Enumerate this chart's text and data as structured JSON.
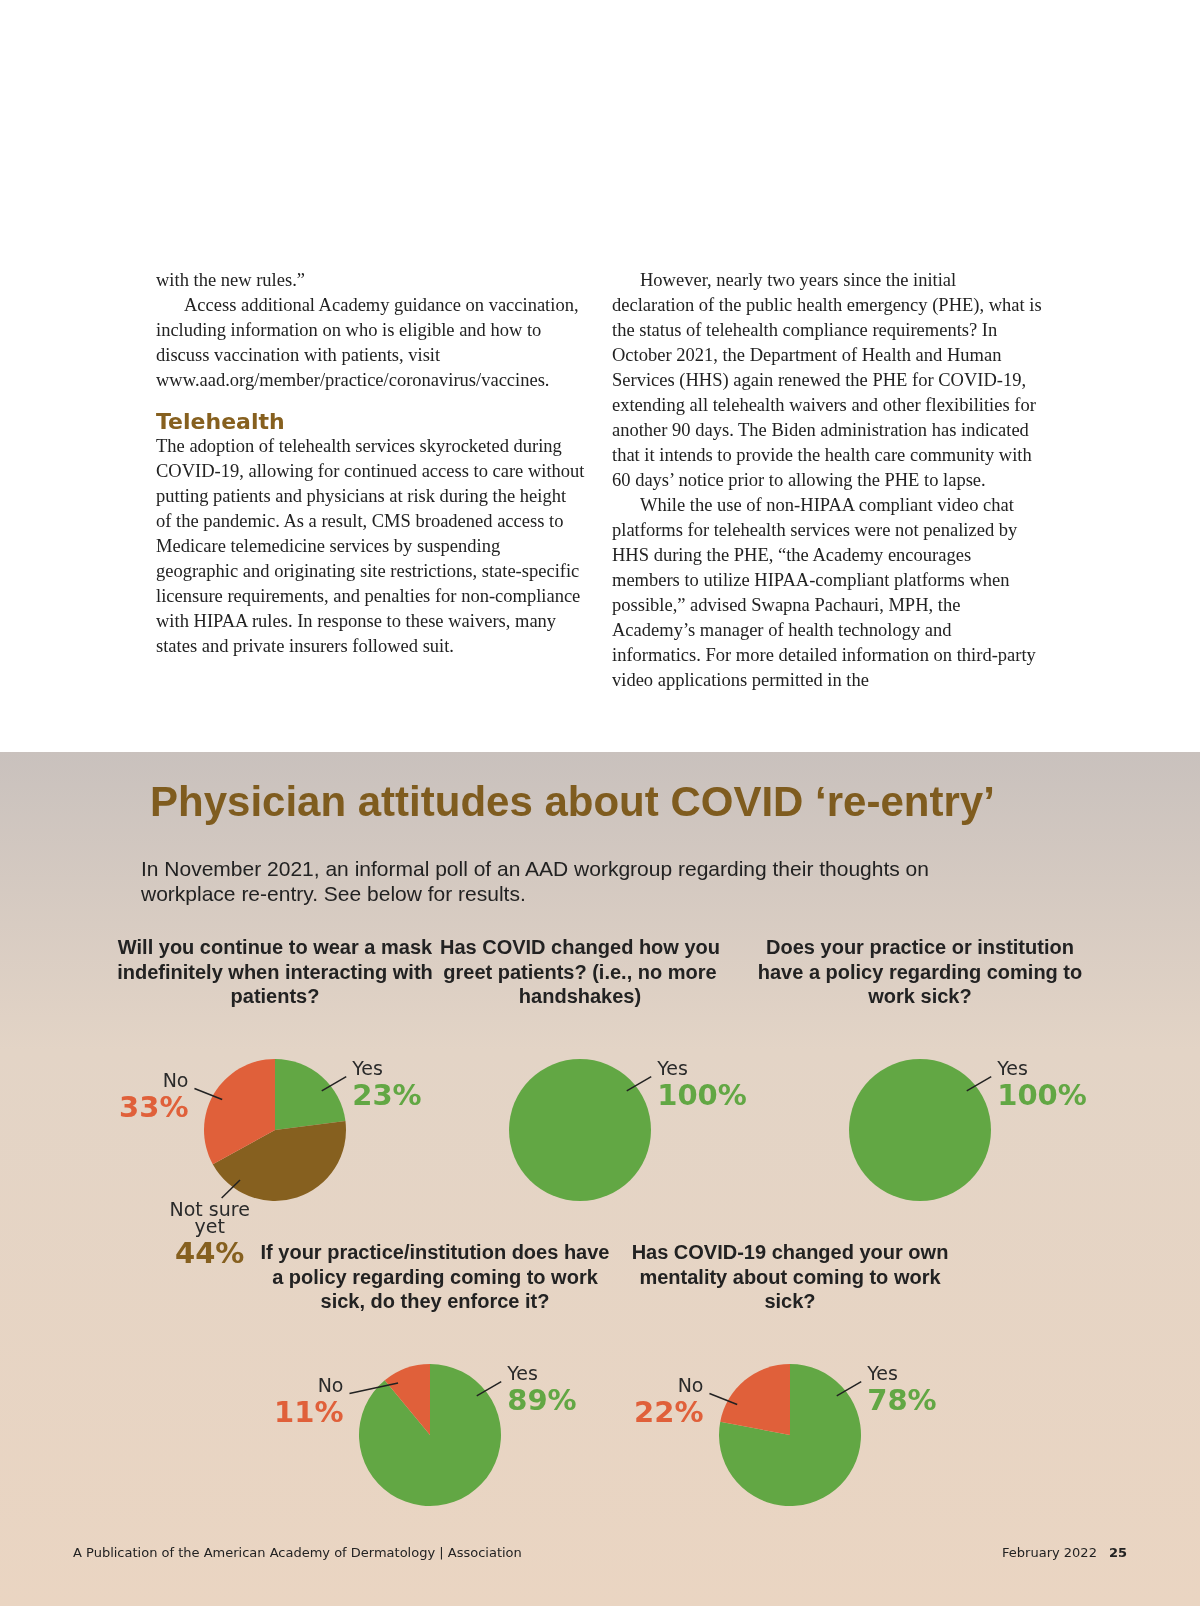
{
  "chart_data": [
    {
      "type": "other",
      "title": "Physician attitudes about COVID ‘re-entry’",
      "subtitle": "In November 2021, an informal poll of an AAD workgroup regarding their thoughts on workplace re-entry. See below for results.",
      "annotations": [
        "with the new rules.”",
        "Access additional Academy guidance on vaccination, including information on who is eligible and how to discuss vaccination with patients, visit www.aad.org/member/practice/coronavirus/vaccines.",
        "Telehealth",
        "The adoption of telehealth services skyrocketed during COVID-19, allowing for continued access to care without putting patients and physicians at risk during the height of the pandemic. As a result, CMS broadened access to Medicare telemedicine services by suspending geographic and originating site restrictions, state-specific licensure requirements, and penalties for non-compliance with HIPAA rules. In response to these waivers, many states and private insurers followed suit.",
        "However, nearly two years since the initial declaration of the public health emergency (PHE), what is the status of telehealth compliance requirements? In October 2021, the Department of Health and Human Services (HHS) again renewed the PHE for COVID-19, extending all telehealth waivers and other flexibilities for another 90 days. The Biden administration has indicated that it intends to provide the health care community with 60 days’ notice prior to allowing the PHE to lapse.",
        "While the use of non-HIPAA compliant video chat platforms for telehealth services were not penalized by HHS during the PHE, “the Academy encourages members to utilize HIPAA-compliant platforms when possible,” advised Swapna Pachauri, MPH, the Academy’s manager of health technology and informatics. For more detailed information on third-party video applications permitted in the",
        "A Publication of the American Academy of Dermatology | Association",
        "February 2022",
        "25"
      ]
    },
    {
      "type": "pie",
      "title": "Will you continue to wear a mask indefinitely when interacting with patients?",
      "categories": [
        "Yes",
        "Not sure yet",
        "No"
      ],
      "values": [
        23,
        44,
        33
      ],
      "value_labels": [
        "23%",
        "44%",
        "33%"
      ],
      "colors": [
        "#62a744",
        "#86601f",
        "#e0603a"
      ]
    },
    {
      "type": "pie",
      "title": "Has COVID changed how you greet patients? (i.e., no more handshakes)",
      "categories": [
        "Yes"
      ],
      "values": [
        100
      ],
      "value_labels": [
        "100%"
      ],
      "colors": [
        "#62a744"
      ]
    },
    {
      "type": "pie",
      "title": "Does your practice or institution have a policy regarding coming to work sick?",
      "categories": [
        "Yes"
      ],
      "values": [
        100
      ],
      "value_labels": [
        "100%"
      ],
      "colors": [
        "#62a744"
      ]
    },
    {
      "type": "pie",
      "title": "If your practice/institution does have a policy regarding coming to work sick, do they enforce it?",
      "categories": [
        "Yes",
        "No"
      ],
      "values": [
        89,
        11
      ],
      "value_labels": [
        "89%",
        "11%"
      ],
      "colors": [
        "#62a744",
        "#e0603a"
      ]
    },
    {
      "type": "pie",
      "title": "Has COVID-19 changed your own mentality about coming to work sick?",
      "categories": [
        "Yes",
        "No"
      ],
      "values": [
        78,
        22
      ],
      "value_labels": [
        "78%",
        "22%"
      ],
      "colors": [
        "#62a744",
        "#e0603a"
      ]
    }
  ]
}
